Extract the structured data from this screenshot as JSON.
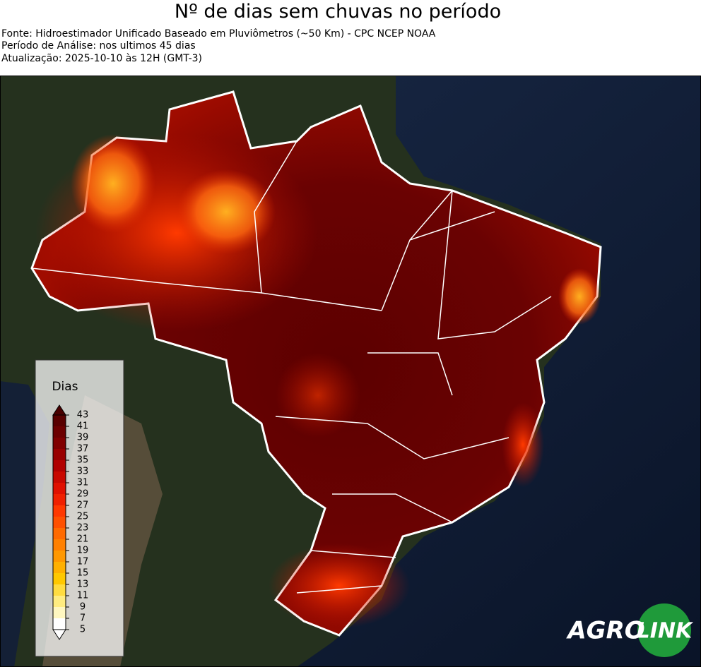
{
  "header": {
    "title": "Nº de dias sem chuvas no período",
    "lines": [
      "Fonte: Hidroestimador Unificado Baseado em Pluviômetros (~50 Km) - CPC NCEP NOAA",
      "Período de Análise: nos ultimos 45 dias",
      "Atualização: 2025-10-10 às 12H (GMT-3)"
    ]
  },
  "legend": {
    "title": "Dias",
    "ticks": [
      5,
      7,
      9,
      11,
      13,
      15,
      17,
      19,
      21,
      23,
      25,
      27,
      29,
      31,
      33,
      35,
      37,
      39,
      41,
      43
    ]
  },
  "logo": {
    "left": "AGRO",
    "right": "LINK"
  }
}
